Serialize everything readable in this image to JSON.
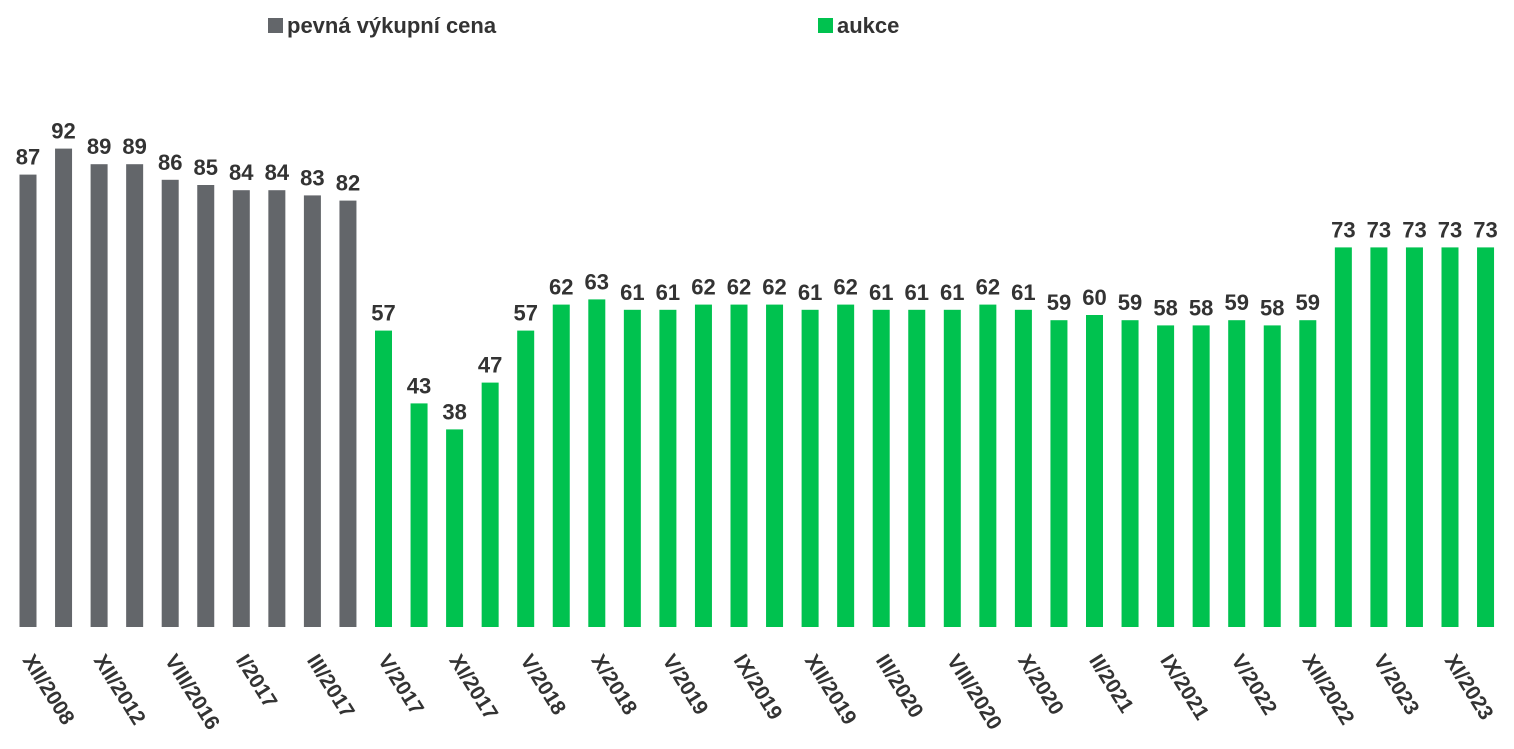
{
  "chart_data": {
    "type": "bar",
    "categories": [
      "XII/2008",
      null,
      "XII/2012",
      null,
      "VIII/2016",
      null,
      "I/2017",
      null,
      "III/2017",
      null,
      "V/2017",
      null,
      "XI/2017",
      null,
      "V/2018",
      null,
      "X/2018",
      null,
      "V/2019",
      null,
      "IX/2019",
      null,
      "XII/2019",
      null,
      "III/2020",
      null,
      "VIII/2020",
      null,
      "X/2020",
      null,
      "II/2021",
      null,
      "IX/2021",
      null,
      "V/2022",
      null,
      "XII/2022",
      null,
      "V/2023",
      null,
      "XI/2023",
      null
    ],
    "series": [
      {
        "name": "pevná výkupní cena",
        "color": "#63666a",
        "values": [
          87,
          92,
          89,
          89,
          86,
          85,
          84,
          84,
          83,
          82,
          null,
          null,
          null,
          null,
          null,
          null,
          null,
          null,
          null,
          null,
          null,
          null,
          null,
          null,
          null,
          null,
          null,
          null,
          null,
          null,
          null,
          null,
          null,
          null,
          null,
          null,
          null,
          null,
          null,
          null,
          null,
          null
        ]
      },
      {
        "name": "aukce",
        "color": "#00c24f",
        "values": [
          null,
          null,
          null,
          null,
          null,
          null,
          null,
          null,
          null,
          null,
          57,
          43,
          38,
          47,
          57,
          62,
          63,
          61,
          61,
          62,
          62,
          62,
          61,
          62,
          61,
          61,
          61,
          62,
          61,
          59,
          60,
          59,
          58,
          58,
          59,
          58,
          59,
          73,
          73,
          73,
          73,
          73
        ]
      }
    ],
    "ylim": [
      0,
      120
    ]
  }
}
